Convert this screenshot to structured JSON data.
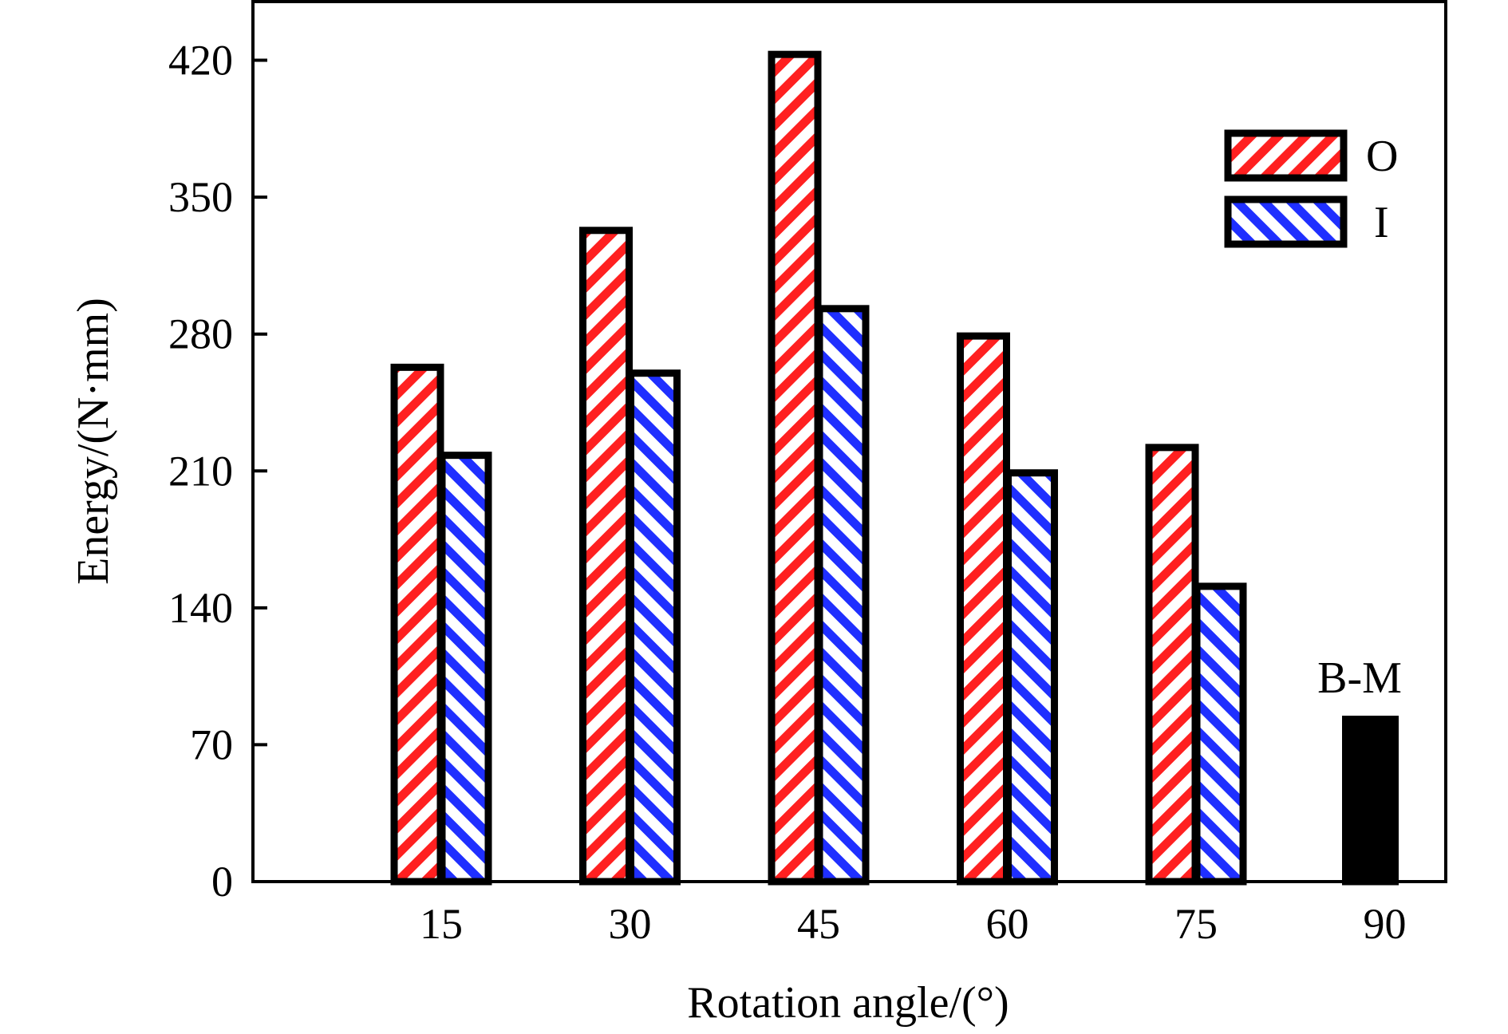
{
  "chart_data": {
    "type": "bar",
    "xlabel": "Rotation angle/(°)",
    "ylabel": "Energy/(N·mm)",
    "categories": [
      "15",
      "30",
      "45",
      "60",
      "75",
      "90"
    ],
    "ylim": [
      0,
      450
    ],
    "yticks": [
      0,
      70,
      140,
      210,
      280,
      350,
      420
    ],
    "series": [
      {
        "name": "O",
        "values": [
          263,
          333,
          423,
          279,
          222,
          null
        ],
        "color": "#ff2020",
        "pattern": "diagonal-hatch-down"
      },
      {
        "name": "I",
        "values": [
          218,
          260,
          293,
          209,
          151,
          null
        ],
        "color": "#1f2fff",
        "pattern": "diagonal-hatch-up"
      }
    ],
    "reference_bar": {
      "category": "90",
      "value": 83,
      "color": "#000000",
      "label": "B-M"
    },
    "legend_position": "top-right",
    "grid": false
  }
}
